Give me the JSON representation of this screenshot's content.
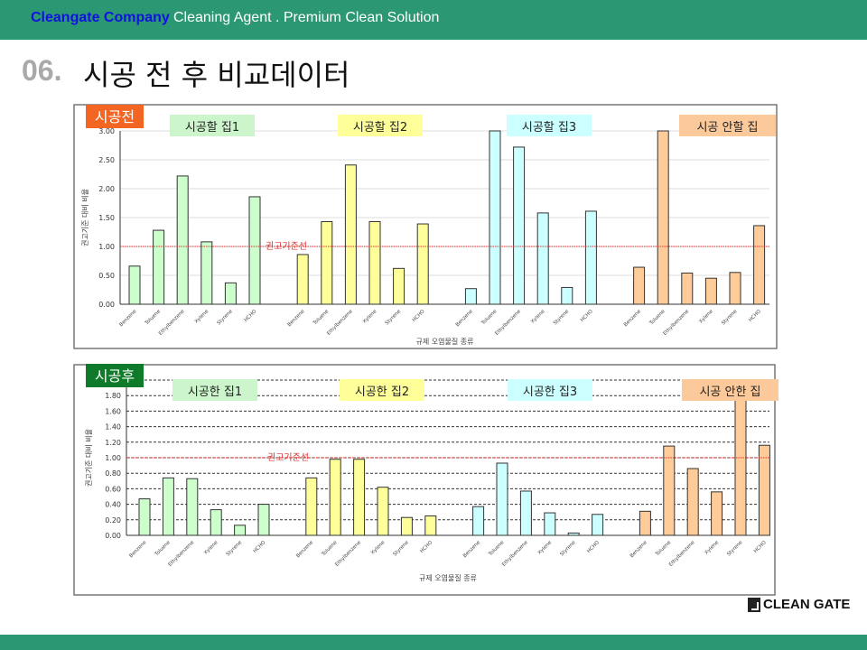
{
  "header": {
    "brand": "Cleangate Company",
    "tagline": "Cleaning Agent . Premium Clean Solution"
  },
  "page": {
    "title_num": "06.",
    "title": "시공 전 후 비교데이터"
  },
  "logo": {
    "text": "CLEAN GATE"
  },
  "colors": {
    "header": "#2b9873",
    "before_badge": "#f26522",
    "after_badge": "#0f7a2a",
    "reference_line": "#e03030"
  },
  "chart_data": [
    {
      "type": "bar",
      "badge": "시공전",
      "ylabel": "권고기준 대비 비율",
      "xlabel": "규제 오염물질 종류",
      "ylim": [
        0,
        3
      ],
      "yticks": [
        "0.00",
        "0.50",
        "1.00",
        "1.50",
        "2.00",
        "2.50",
        "3.00"
      ],
      "tick_step": 0.5,
      "reference": {
        "value": 1.0,
        "label": "권고기준선"
      },
      "categories": [
        "Benzene",
        "Toluene",
        "Ethylbenzene",
        "Xylene",
        "Styrene",
        "HCHO"
      ],
      "series": [
        {
          "name": "시공할 집1",
          "fill": "#ccffcc",
          "label_bg": "#ccf5cc",
          "values": [
            0.66,
            1.28,
            2.22,
            1.08,
            0.37,
            1.86
          ]
        },
        {
          "name": "시공할 집2",
          "fill": "#ffff99",
          "label_bg": "#ffff99",
          "values": [
            0.86,
            1.43,
            2.41,
            1.43,
            0.62,
            1.39
          ]
        },
        {
          "name": "시공할 집3",
          "fill": "#ccffff",
          "label_bg": "#ccffff",
          "values": [
            0.27,
            3.0,
            2.72,
            1.58,
            0.29,
            1.61
          ]
        },
        {
          "name": "시공 안할 집",
          "fill": "#ffcc99",
          "label_bg": "#fcc99a",
          "values": [
            0.64,
            3.0,
            0.54,
            0.45,
            0.55,
            1.36
          ]
        }
      ]
    },
    {
      "type": "bar",
      "badge": "시공후",
      "ylabel": "권고기준 대비 비율",
      "xlabel": "규제 오염물질 종류",
      "ylim": [
        0,
        2
      ],
      "yticks": [
        "0.00",
        "0.20",
        "0.40",
        "0.60",
        "0.80",
        "1.00",
        "1.20",
        "1.40",
        "1.60",
        "1.80"
      ],
      "tick_step": 0.2,
      "reference": {
        "value": 1.0,
        "label": "권고기준선"
      },
      "categories": [
        "Benzene",
        "Toluene",
        "Ethylbenzene",
        "Xylene",
        "Styrene",
        "HCHO"
      ],
      "series": [
        {
          "name": "시공한 집1",
          "fill": "#ccffcc",
          "label_bg": "#ccf5cc",
          "values": [
            0.47,
            0.74,
            0.73,
            0.33,
            0.13,
            0.4
          ]
        },
        {
          "name": "시공한 집2",
          "fill": "#ffff99",
          "label_bg": "#ffff99",
          "values": [
            0.74,
            0.98,
            0.98,
            0.62,
            0.23,
            0.25
          ]
        },
        {
          "name": "시공한 집3",
          "fill": "#ccffff",
          "label_bg": "#ccffff",
          "values": [
            0.37,
            0.93,
            0.57,
            0.29,
            0.03,
            0.27
          ]
        },
        {
          "name": "시공 안한 집",
          "fill": "#ffcc99",
          "label_bg": "#fcc99a",
          "values": [
            0.31,
            1.15,
            0.86,
            0.56,
            2.0,
            1.16
          ]
        }
      ]
    }
  ]
}
